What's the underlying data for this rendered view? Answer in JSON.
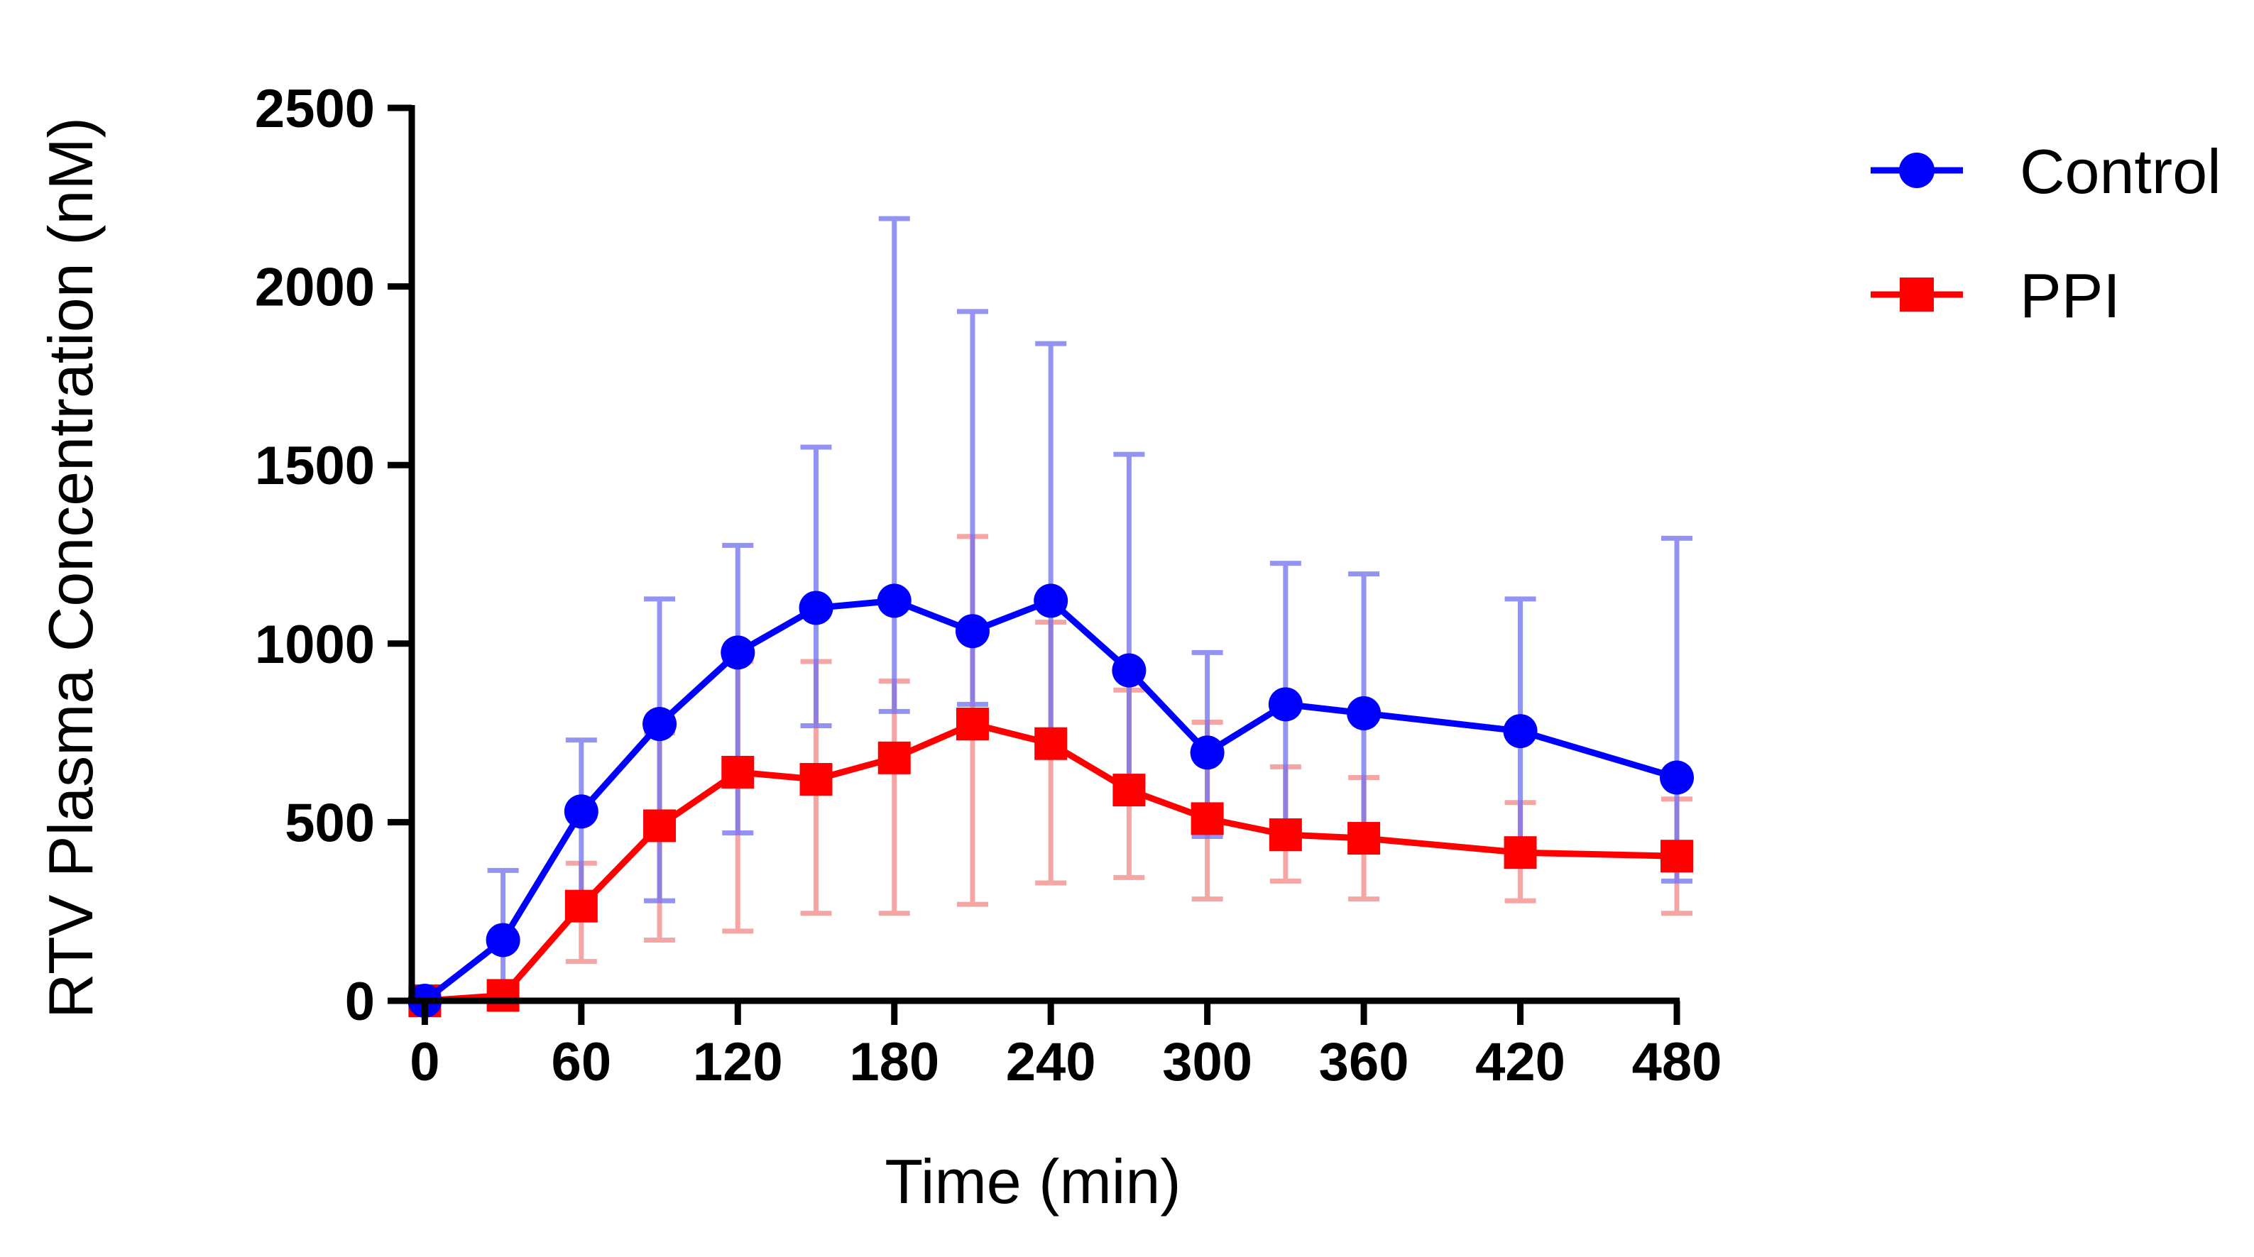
{
  "chart_data": {
    "type": "line",
    "title": "",
    "xlabel": "Time (min)",
    "ylabel": "RTV Plasma Concentration (nM)",
    "xlim": [
      -5,
      480
    ],
    "ylim": [
      0,
      2500
    ],
    "xticks": [
      0,
      60,
      120,
      180,
      240,
      300,
      360,
      420,
      480
    ],
    "yticks": [
      0,
      500,
      1000,
      1500,
      2000,
      2500
    ],
    "xtick_labels": [
      "0",
      "60",
      "120",
      "180",
      "240",
      "300",
      "360",
      "420",
      "480"
    ],
    "ytick_labels": [
      "0",
      "500",
      "1000",
      "1500",
      "2000",
      "2500"
    ],
    "x": [
      0,
      30,
      60,
      90,
      120,
      150,
      180,
      210,
      240,
      270,
      300,
      330,
      360,
      420,
      480
    ],
    "legend_position": "top-right",
    "series": [
      {
        "name": "Control",
        "marker": "circle",
        "color": "#0000ff",
        "error_color": "#7070f0",
        "values": [
          0,
          170,
          530,
          775,
          975,
          1100,
          1120,
          1035,
          1120,
          925,
          695,
          830,
          805,
          755,
          625
        ],
        "error_upper": [
          0,
          365,
          730,
          1125,
          1275,
          1550,
          2190,
          1930,
          1840,
          1530,
          975,
          1225,
          1195,
          1125,
          1295
        ],
        "error_lower": [
          0,
          20,
          300,
          280,
          470,
          770,
          810,
          830,
          690,
          575,
          460,
          465,
          440,
          390,
          335
        ]
      },
      {
        "name": "PPI",
        "marker": "square",
        "color": "#ff0000",
        "error_color": "#f48888",
        "values": [
          0,
          15,
          265,
          490,
          640,
          620,
          680,
          775,
          720,
          590,
          510,
          465,
          455,
          415,
          405
        ],
        "error_upper": [
          0,
          50,
          385,
          750,
          950,
          950,
          895,
          1300,
          1060,
          870,
          780,
          655,
          625,
          555,
          565
        ],
        "error_lower": [
          0,
          0,
          110,
          170,
          195,
          245,
          245,
          270,
          330,
          345,
          285,
          335,
          285,
          280,
          245
        ]
      }
    ]
  }
}
